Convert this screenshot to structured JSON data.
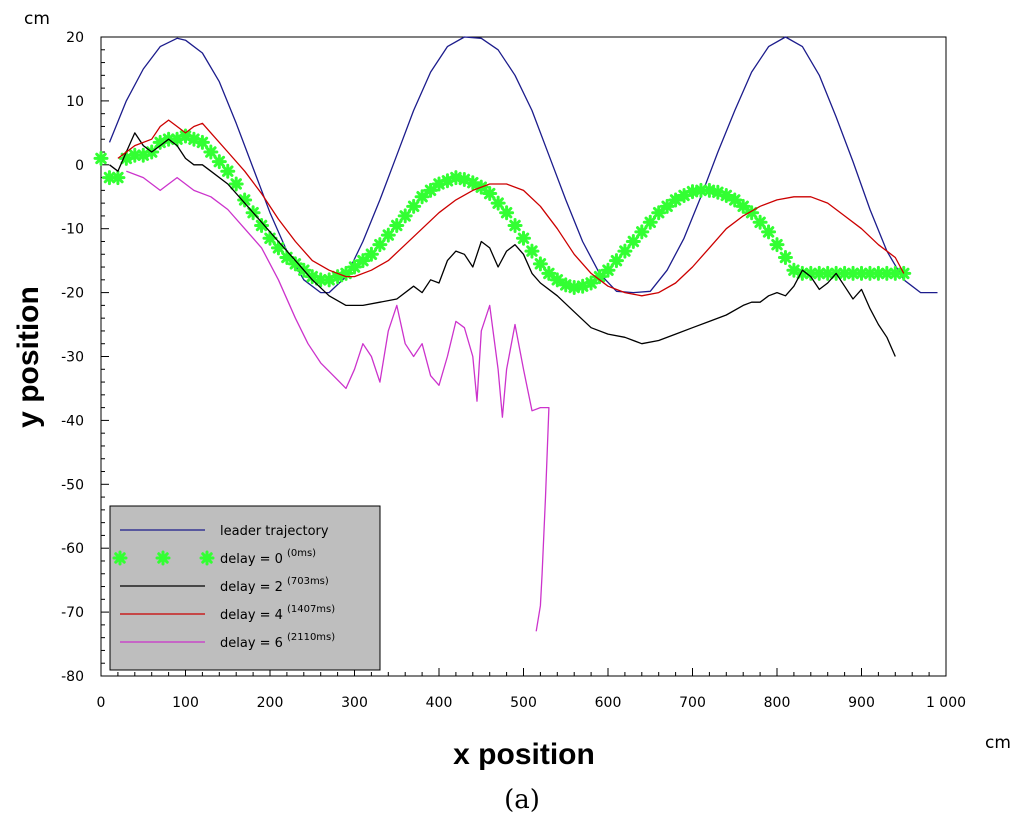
{
  "chart_data": {
    "type": "line",
    "xlabel": "x position",
    "ylabel": "y position",
    "x_unit": "cm",
    "y_unit": "cm",
    "caption": "(a)",
    "xlim": [
      0,
      1000
    ],
    "ylim": [
      -80,
      20
    ],
    "x_ticks": [
      0,
      100,
      200,
      300,
      400,
      500,
      600,
      700,
      800,
      900,
      1000
    ],
    "x_tick_labels": [
      "0",
      "100",
      "200",
      "300",
      "400",
      "500",
      "600",
      "700",
      "800",
      "900",
      "1 000"
    ],
    "y_ticks": [
      20,
      10,
      0,
      -10,
      -20,
      -30,
      -40,
      -50,
      -60,
      -70,
      -80
    ],
    "y_tick_labels": [
      "20",
      "10",
      "0",
      "-10",
      "-20",
      "-30",
      "-40",
      "-50",
      "-60",
      "-70",
      "-80"
    ],
    "grid": false,
    "legend_position": "bottom-left",
    "series": [
      {
        "name": "leader trajectory",
        "color": "#1c1c8c",
        "style": "line",
        "x": [
          10,
          30,
          50,
          70,
          90,
          100,
          120,
          140,
          160,
          180,
          200,
          220,
          240,
          260,
          270,
          290,
          310,
          330,
          350,
          370,
          390,
          410,
          430,
          450,
          470,
          490,
          510,
          530,
          550,
          570,
          590,
          610,
          630,
          650,
          670,
          690,
          710,
          730,
          750,
          770,
          790,
          810,
          830,
          850,
          870,
          890,
          910,
          930,
          950,
          970,
          990
        ],
        "y": [
          3.5,
          10,
          15,
          18.5,
          19.8,
          19.5,
          17.5,
          13,
          6.5,
          -0.5,
          -7.5,
          -13.5,
          -18,
          -20,
          -20,
          -17.5,
          -12,
          -5.5,
          1.5,
          8.5,
          14.5,
          18.5,
          20,
          19.8,
          18,
          14,
          8.5,
          1.5,
          -5.5,
          -12,
          -17,
          -19.8,
          -20,
          -19.8,
          -16.5,
          -11.5,
          -5,
          2,
          8.5,
          14.5,
          18.5,
          20,
          18.5,
          14,
          7.5,
          0.5,
          -7,
          -13.5,
          -18,
          -20,
          -20
        ]
      },
      {
        "name": "delay = 0",
        "label_note": "(0ms)",
        "color": "#33ff33",
        "style": "markers",
        "x": [
          0,
          10,
          20,
          30,
          40,
          50,
          60,
          70,
          80,
          90,
          100,
          110,
          120,
          130,
          140,
          150,
          160,
          170,
          180,
          190,
          200,
          210,
          220,
          230,
          240,
          250,
          260,
          270,
          280,
          290,
          300,
          310,
          320,
          330,
          340,
          350,
          360,
          370,
          380,
          390,
          400,
          410,
          420,
          430,
          440,
          450,
          460,
          470,
          480,
          490,
          500,
          510,
          520,
          530,
          540,
          550,
          560,
          570,
          580,
          590,
          600,
          610,
          620,
          630,
          640,
          650,
          660,
          670,
          680,
          690,
          700,
          710,
          720,
          730,
          740,
          750,
          760,
          770,
          780,
          790,
          800,
          810,
          820,
          830,
          840,
          850,
          860,
          870,
          880,
          890,
          900,
          910,
          920,
          930,
          940,
          950
        ],
        "y": [
          1,
          -2,
          -2,
          1,
          1.5,
          1.5,
          2,
          3.5,
          4,
          4,
          4.5,
          4,
          3.5,
          2,
          0.5,
          -1,
          -3,
          -5.5,
          -7.5,
          -9.5,
          -11.5,
          -13,
          -14.5,
          -15.5,
          -16.5,
          -17.5,
          -18,
          -18,
          -17.5,
          -17,
          -16,
          -15,
          -14,
          -12.5,
          -11,
          -9.5,
          -8,
          -6.5,
          -5,
          -4,
          -3,
          -2.5,
          -2,
          -2.3,
          -2.8,
          -3.5,
          -4.5,
          -6,
          -7.5,
          -9.5,
          -11.5,
          -13.5,
          -15.5,
          -17,
          -18,
          -18.8,
          -19.2,
          -19,
          -18.5,
          -17.5,
          -16.5,
          -15,
          -13.5,
          -12,
          -10.5,
          -9,
          -7.5,
          -6.5,
          -5.5,
          -4.8,
          -4.2,
          -4,
          -4,
          -4.3,
          -4.8,
          -5.5,
          -6.5,
          -7.5,
          -9,
          -10.5,
          -12.5,
          -14.5,
          -16.5,
          -17,
          -17,
          -17,
          -17,
          -17,
          -17,
          -17,
          -17,
          -17,
          -17,
          -17,
          -17,
          -17
        ]
      },
      {
        "name": "delay = 2",
        "label_note": "(703ms)",
        "color": "#000000",
        "style": "line",
        "x": [
          10,
          20,
          30,
          40,
          50,
          60,
          70,
          80,
          90,
          100,
          110,
          120,
          130,
          150,
          170,
          190,
          210,
          230,
          250,
          270,
          290,
          310,
          330,
          350,
          370,
          380,
          390,
          400,
          410,
          420,
          430,
          440,
          450,
          460,
          470,
          480,
          490,
          500,
          510,
          520,
          540,
          560,
          580,
          600,
          620,
          640,
          660,
          680,
          700,
          720,
          740,
          760,
          770,
          780,
          790,
          800,
          810,
          820,
          830,
          840,
          850,
          860,
          870,
          880,
          890,
          900,
          910,
          920,
          930,
          940
        ],
        "y": [
          0,
          -1,
          2,
          5,
          3,
          2,
          3,
          4,
          3,
          1,
          0,
          0,
          -1,
          -3,
          -6,
          -9,
          -12,
          -15,
          -18,
          -20.5,
          -22,
          -22,
          -21.5,
          -21,
          -19,
          -20,
          -18,
          -18.5,
          -15,
          -13.5,
          -14,
          -16,
          -12,
          -13,
          -16,
          -13.5,
          -12.5,
          -14,
          -17,
          -18.5,
          -20.5,
          -23,
          -25.5,
          -26.5,
          -27,
          -28,
          -27.5,
          -26.5,
          -25.5,
          -24.5,
          -23.5,
          -22,
          -21.5,
          -21.5,
          -20.5,
          -20,
          -20.5,
          -19,
          -16.5,
          -17.5,
          -19.5,
          -18.5,
          -17,
          -19,
          -21,
          -19.5,
          -22.5,
          -25,
          -27,
          -30
        ]
      },
      {
        "name": "delay = 4",
        "label_note": "(1407ms)",
        "color": "#cc0000",
        "style": "line",
        "x": [
          20,
          40,
          60,
          70,
          80,
          90,
          100,
          110,
          120,
          130,
          150,
          170,
          190,
          210,
          230,
          250,
          270,
          290,
          300,
          320,
          340,
          360,
          380,
          400,
          420,
          440,
          460,
          480,
          500,
          520,
          540,
          560,
          580,
          600,
          620,
          640,
          660,
          680,
          700,
          720,
          740,
          760,
          780,
          800,
          820,
          840,
          860,
          880,
          900,
          920,
          940,
          950
        ],
        "y": [
          1,
          3,
          4,
          6,
          7,
          6,
          5,
          6,
          6.5,
          5,
          2,
          -1,
          -4.5,
          -8.5,
          -12,
          -15,
          -16.5,
          -17.5,
          -17.5,
          -16.5,
          -15,
          -12.5,
          -10,
          -7.5,
          -5.5,
          -4,
          -3,
          -3,
          -4,
          -6.5,
          -10,
          -14,
          -17,
          -19,
          -20,
          -20.5,
          -20,
          -18.5,
          -16,
          -13,
          -10,
          -8,
          -6.5,
          -5.5,
          -5,
          -5,
          -6,
          -8,
          -10,
          -12.5,
          -14.5,
          -17
        ]
      },
      {
        "name": "delay = 6",
        "label_note": "(2110ms)",
        "color": "#cc33cc",
        "style": "line",
        "x": [
          30,
          50,
          70,
          80,
          90,
          110,
          130,
          150,
          170,
          190,
          210,
          230,
          245,
          260,
          275,
          290,
          300,
          310,
          320,
          330,
          340,
          350,
          360,
          370,
          380,
          390,
          400,
          410,
          420,
          430,
          440,
          445,
          450,
          460,
          470,
          475,
          480,
          490,
          500,
          510,
          520,
          530,
          528,
          526,
          524,
          522,
          520,
          515
        ],
        "y": [
          -1,
          -2,
          -4,
          -3,
          -2,
          -4,
          -5,
          -7,
          -10,
          -13,
          -18,
          -24,
          -28,
          -31,
          -33,
          -35,
          -32,
          -28,
          -30,
          -34,
          -26,
          -22,
          -28,
          -30,
          -28,
          -33,
          -34.5,
          -30,
          -24.5,
          -25.5,
          -30,
          -37,
          -26,
          -22,
          -32,
          -39.5,
          -32,
          -25,
          -32,
          -38.5,
          -38,
          -38,
          -45,
          -52,
          -58,
          -64,
          -69,
          -73
        ]
      }
    ]
  }
}
